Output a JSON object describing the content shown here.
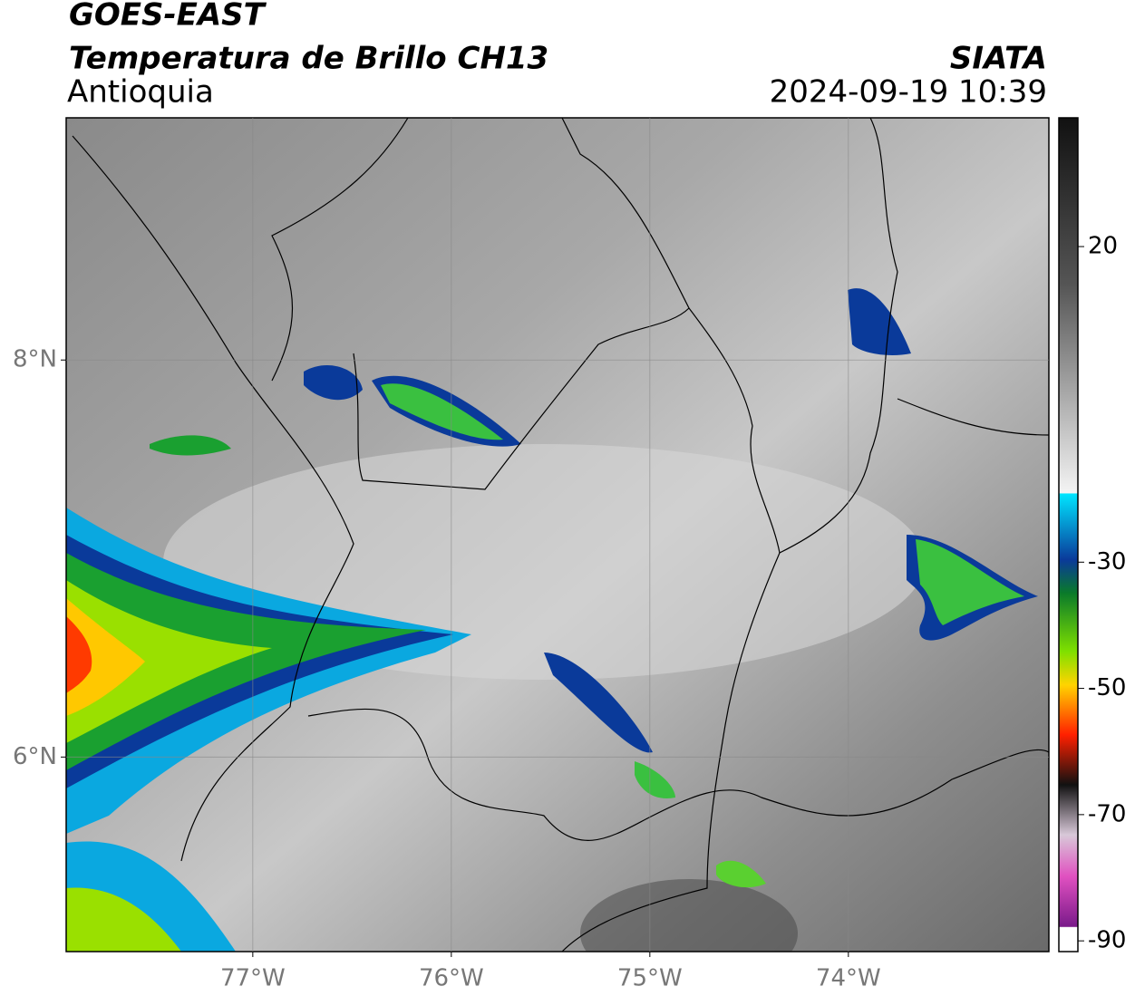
{
  "header": {
    "title": "GOES-EAST",
    "subtitle": "Temperatura de Brillo CH13",
    "region": "Antioquia",
    "source": "SIATA",
    "datetime": "2024-09-19 10:39"
  },
  "map": {
    "xlim": [
      -77.94,
      -72.99
    ],
    "ylim": [
      5.02,
      9.22
    ],
    "xticks": [
      {
        "value": -77,
        "label": "77°W"
      },
      {
        "value": -76,
        "label": "76°W"
      },
      {
        "value": -75,
        "label": "75°W"
      },
      {
        "value": -74,
        "label": "74°W"
      }
    ],
    "yticks": [
      {
        "value": 8,
        "label": "8°N"
      },
      {
        "value": 6,
        "label": "6°N"
      }
    ],
    "grid": true
  },
  "colorbar": {
    "lim": [
      -91.7,
      40.4
    ],
    "ticks": [
      20,
      -30,
      -50,
      -70,
      -90
    ]
  }
}
